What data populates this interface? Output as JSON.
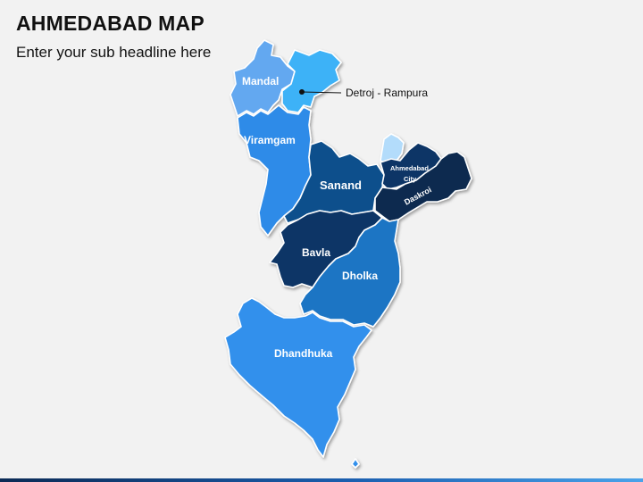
{
  "header": {
    "title": "AHMEDABAD MAP",
    "subtitle": "Enter your sub headline here"
  },
  "regions": [
    {
      "name": "Mandal",
      "color": "#64a8f0"
    },
    {
      "name": "Detroj - Rampura",
      "color": "#3db2f7"
    },
    {
      "name": "Viramgam",
      "color": "#2f8be8"
    },
    {
      "name": "Sanand",
      "color": "#0b4f8c"
    },
    {
      "name": "Ahmedabad City",
      "color": "#0d3566"
    },
    {
      "name": "Daskroi",
      "color": "#092a4f"
    },
    {
      "name": "Bavla",
      "color": "#0d3566"
    },
    {
      "name": "Dholka",
      "color": "#1a74c4"
    },
    {
      "name": "Dhandhuka",
      "color": "#3390ec"
    }
  ],
  "labels": {
    "mandal": "Mandal",
    "viramgam": "Viramgam",
    "sanand": "Sanand",
    "ahmedabad_line1": "Ahmedabad",
    "ahmedabad_line2": "City",
    "daskroi": "Daskroi",
    "bavla": "Bavla",
    "dholka": "Dholka",
    "dhandhuka": "Dhandhuka",
    "detroj_callout": "Detroj - Rampura"
  },
  "extra_patch_color": "#b3dcfb"
}
